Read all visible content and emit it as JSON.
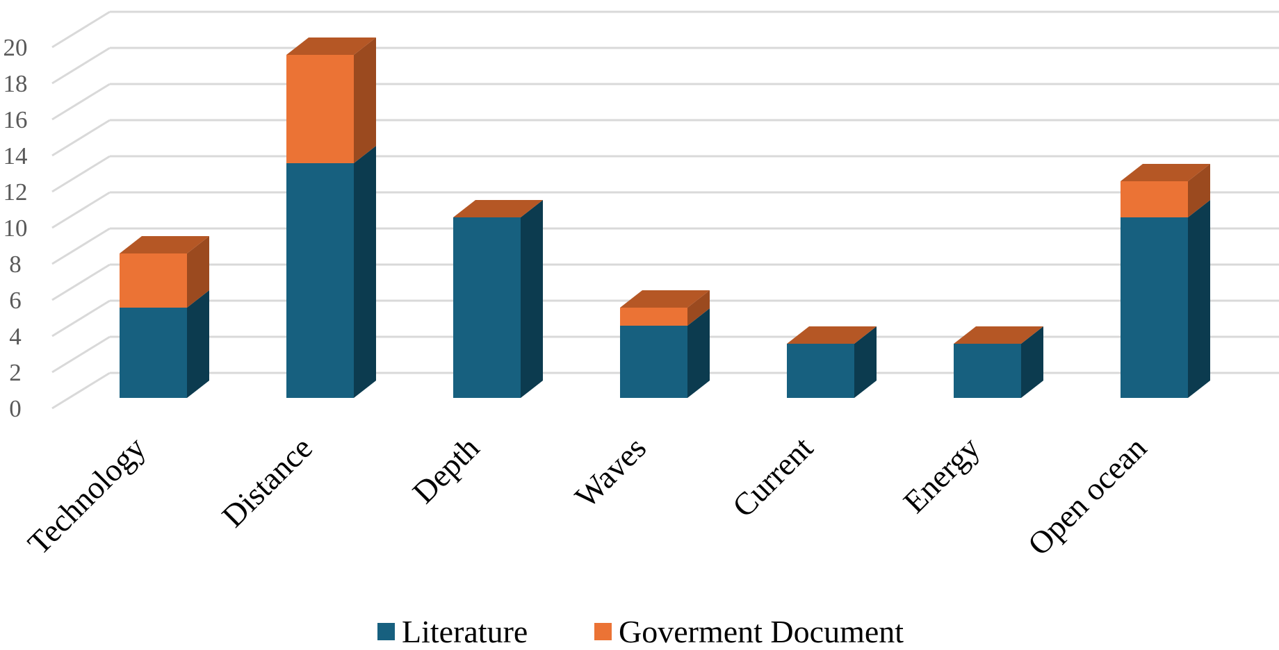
{
  "chart_data": {
    "type": "bar",
    "stacked": true,
    "three_d": true,
    "title": "",
    "xlabel": "",
    "ylabel": "",
    "categories": [
      "Technology",
      "Distance",
      "Depth",
      "Waves",
      "Current",
      "Energy",
      "Open ocean"
    ],
    "series": [
      {
        "name": "Literature",
        "values": [
          5,
          13,
          10,
          4,
          3,
          3,
          10
        ],
        "color": "#17607f"
      },
      {
        "name": "Goverment Document",
        "values": [
          3,
          6,
          0,
          1,
          0,
          0,
          2
        ],
        "color": "#eb7335"
      }
    ],
    "ylim": [
      0,
      20
    ],
    "yticks": [
      "0",
      "2",
      "4",
      "6",
      "8",
      "10",
      "12",
      "14",
      "16",
      "18",
      "20"
    ],
    "grid": true,
    "legend_position": "bottom",
    "colors": {
      "grid": "#d9d9d9",
      "literature_side": "#0c3b4f",
      "gov_top": "#b55725",
      "gov_side": "#9b4a1f"
    }
  }
}
